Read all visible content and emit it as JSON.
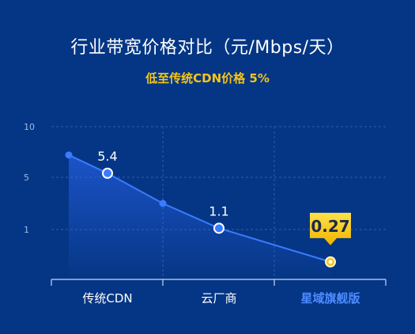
{
  "header": {
    "title": "行业带宽价格对比（元/Mbps/天）",
    "subtitle": "低至传统CDN价格 5%"
  },
  "colors": {
    "background": "#053685",
    "line": "#3a7bff",
    "highlight_label": "#4d8cff",
    "callout": "#f5c518"
  },
  "chart_data": {
    "type": "line",
    "title": "行业带宽价格对比（元/Mbps/天）",
    "subtitle": "低至传统CDN价格 5%",
    "categories": [
      "传统CDN",
      "云厂商",
      "星域旗舰版"
    ],
    "y_ticks": [
      "10",
      "5",
      "1"
    ],
    "series": [
      {
        "points": [
          {
            "x": "传统CDN",
            "y": 7.2,
            "label": ""
          },
          {
            "x": "传统CDN",
            "y": 5.4,
            "label": "5.4"
          },
          {
            "x": "云厂商",
            "y": 3.0,
            "label": ""
          },
          {
            "x": "云厂商",
            "y": 1.1,
            "label": "1.1"
          },
          {
            "x": "星域旗舰版",
            "y": 0.27,
            "label": "0.27"
          }
        ]
      }
    ],
    "highlight": {
      "category": "星域旗舰版",
      "value": "0.27"
    },
    "grid": true,
    "area_fill": true
  }
}
